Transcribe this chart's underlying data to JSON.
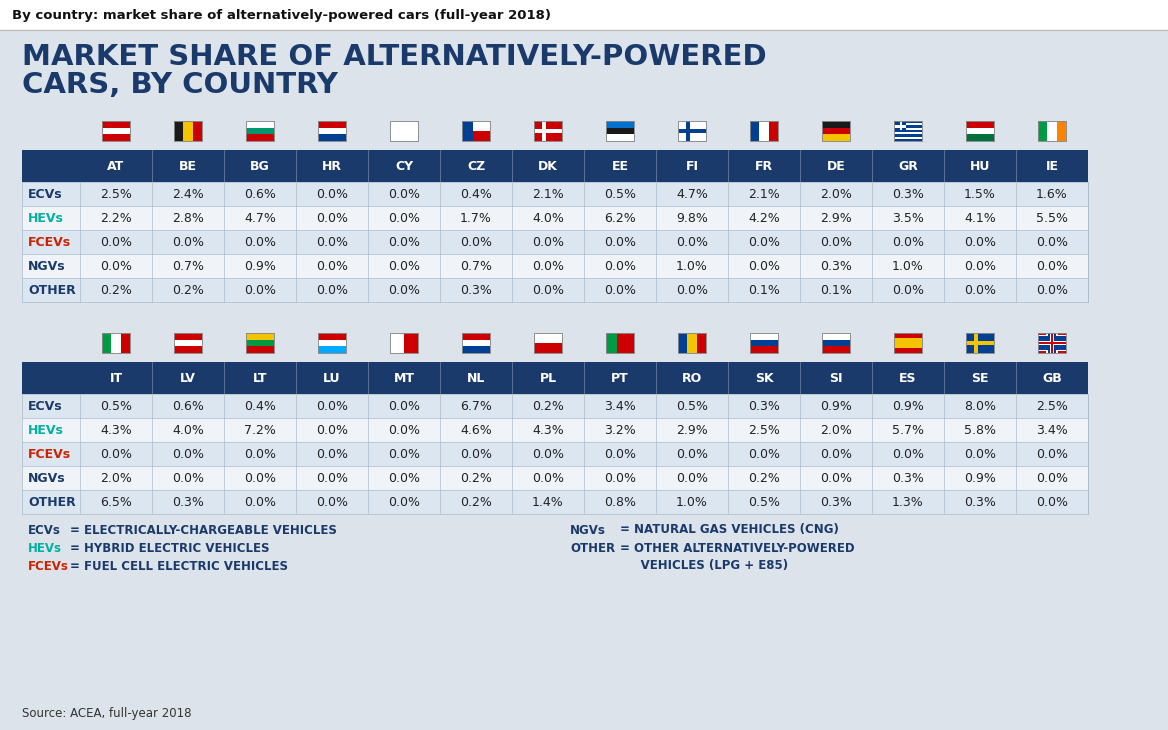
{
  "title_top": "By country: market share of alternatively-powered cars (full-year 2018)",
  "title_main_line1": "MARKET SHARE OF ALTERNATIVELY-POWERED",
  "title_main_line2": "CARS, BY COUNTRY",
  "source": "Source: ACEA, full-year 2018",
  "bg_color": "#dde3ea",
  "header_bg": "#1a3a6b",
  "row_labels": [
    "ECVs",
    "HEVs",
    "FCEVs",
    "NGVs",
    "OTHER"
  ],
  "row_colors": [
    "#1a3a6b",
    "#00b0a0",
    "#cc2200",
    "#1a3a6b",
    "#1a3a6b"
  ],
  "table1_countries": [
    "AT",
    "BE",
    "BG",
    "HR",
    "CY",
    "CZ",
    "DK",
    "EE",
    "FI",
    "FR",
    "DE",
    "GR",
    "HU",
    "IE"
  ],
  "table1_data": {
    "ECVs": [
      "2.5%",
      "2.4%",
      "0.6%",
      "0.0%",
      "0.0%",
      "0.4%",
      "2.1%",
      "0.5%",
      "4.7%",
      "2.1%",
      "2.0%",
      "0.3%",
      "1.5%",
      "1.6%"
    ],
    "HEVs": [
      "2.2%",
      "2.8%",
      "4.7%",
      "0.0%",
      "0.0%",
      "1.7%",
      "4.0%",
      "6.2%",
      "9.8%",
      "4.2%",
      "2.9%",
      "3.5%",
      "4.1%",
      "5.5%"
    ],
    "FCEVs": [
      "0.0%",
      "0.0%",
      "0.0%",
      "0.0%",
      "0.0%",
      "0.0%",
      "0.0%",
      "0.0%",
      "0.0%",
      "0.0%",
      "0.0%",
      "0.0%",
      "0.0%",
      "0.0%"
    ],
    "NGVs": [
      "0.0%",
      "0.7%",
      "0.9%",
      "0.0%",
      "0.0%",
      "0.7%",
      "0.0%",
      "0.0%",
      "1.0%",
      "0.0%",
      "0.3%",
      "1.0%",
      "0.0%",
      "0.0%"
    ],
    "OTHER": [
      "0.2%",
      "0.2%",
      "0.0%",
      "0.0%",
      "0.0%",
      "0.3%",
      "0.0%",
      "0.0%",
      "0.0%",
      "0.1%",
      "0.1%",
      "0.0%",
      "0.0%",
      "0.0%"
    ]
  },
  "table2_countries": [
    "IT",
    "LV",
    "LT",
    "LU",
    "MT",
    "NL",
    "PL",
    "PT",
    "RO",
    "SK",
    "SI",
    "ES",
    "SE",
    "GB"
  ],
  "table2_data": {
    "ECVs": [
      "0.5%",
      "0.6%",
      "0.4%",
      "0.0%",
      "0.0%",
      "6.7%",
      "0.2%",
      "3.4%",
      "0.5%",
      "0.3%",
      "0.9%",
      "0.9%",
      "8.0%",
      "2.5%"
    ],
    "HEVs": [
      "4.3%",
      "4.0%",
      "7.2%",
      "0.0%",
      "0.0%",
      "4.6%",
      "4.3%",
      "3.2%",
      "2.9%",
      "2.5%",
      "2.0%",
      "5.7%",
      "5.8%",
      "3.4%"
    ],
    "FCEVs": [
      "0.0%",
      "0.0%",
      "0.0%",
      "0.0%",
      "0.0%",
      "0.0%",
      "0.0%",
      "0.0%",
      "0.0%",
      "0.0%",
      "0.0%",
      "0.0%",
      "0.0%",
      "0.0%"
    ],
    "NGVs": [
      "2.0%",
      "0.0%",
      "0.0%",
      "0.0%",
      "0.0%",
      "0.2%",
      "0.0%",
      "0.0%",
      "0.0%",
      "0.2%",
      "0.0%",
      "0.3%",
      "0.9%",
      "0.0%"
    ],
    "OTHER": [
      "6.5%",
      "0.3%",
      "0.0%",
      "0.0%",
      "0.0%",
      "0.2%",
      "1.4%",
      "0.8%",
      "1.0%",
      "0.5%",
      "0.3%",
      "1.3%",
      "0.3%",
      "0.0%"
    ]
  }
}
